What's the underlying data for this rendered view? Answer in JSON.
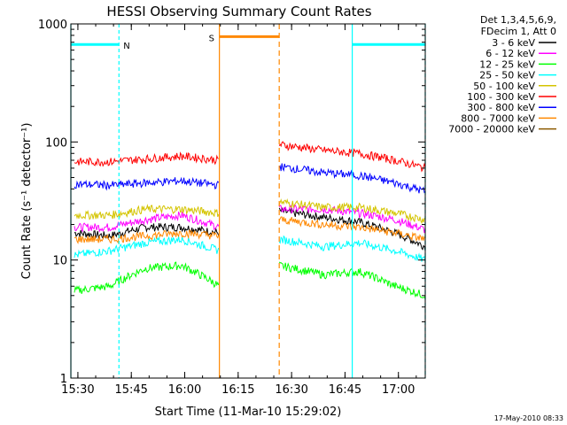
{
  "chart_data": {
    "type": "line",
    "title": "HESSI Observing Summary Count Rates",
    "xlabel": "Start Time (11-Mar-10 15:29:02)",
    "ylabel": "Count Rate (s⁻¹ detector⁻¹)",
    "ylog": true,
    "ylim": [
      1,
      1000
    ],
    "xlim": [
      "15:29:02",
      "17:08:00"
    ],
    "x_unit": "minutes after 15:29:02",
    "xticks": [
      {
        "label": "15:30",
        "minute": 0.97
      },
      {
        "label": "15:45",
        "minute": 15.97
      },
      {
        "label": "16:00",
        "minute": 30.97
      },
      {
        "label": "16:15",
        "minute": 45.97
      },
      {
        "label": "16:30",
        "minute": 60.97
      },
      {
        "label": "16:45",
        "minute": 75.97
      },
      {
        "label": "17:00",
        "minute": 90.97
      }
    ],
    "yticks": [
      {
        "label": "1",
        "value": 1
      },
      {
        "label": "10",
        "value": 10
      },
      {
        "label": "100",
        "value": 100
      },
      {
        "label": "1000",
        "value": 1000
      }
    ],
    "legend_header": [
      "Det 1,3,4,5,6,9,",
      "FDecim 1, Att 0"
    ],
    "legend_position": "outside-right",
    "timestamp": "17-May-2010 08:33",
    "segments": [
      [
        0,
        40.7
      ],
      [
        57.5,
        98.5
      ]
    ],
    "series": [
      {
        "name": "3 - 6 keV",
        "color": "#000000",
        "x": [
          0,
          10,
          20,
          30,
          40.7,
          57.5,
          70,
          80,
          90,
          98.5
        ],
        "values": [
          17,
          16,
          19,
          19,
          17,
          26,
          23,
          21,
          17,
          13
        ]
      },
      {
        "name": "6 - 12 keV",
        "color": "#ff00ff",
        "x": [
          0,
          10,
          20,
          30,
          40.7,
          57.5,
          70,
          80,
          90,
          98.5
        ],
        "values": [
          19,
          19,
          22,
          24,
          19,
          27,
          27,
          25,
          22,
          18
        ]
      },
      {
        "name": "12 - 25 keV",
        "color": "#00ff00",
        "x": [
          0,
          10,
          20,
          30,
          40.7,
          57.5,
          70,
          80,
          90,
          98.5
        ],
        "values": [
          5.5,
          6,
          8.5,
          9,
          6,
          9,
          7.5,
          8,
          6,
          5
        ]
      },
      {
        "name": "25 - 50 keV",
        "color": "#00ffff",
        "x": [
          0,
          10,
          20,
          30,
          40.7,
          57.5,
          70,
          80,
          90,
          98.5
        ],
        "values": [
          11,
          12,
          14,
          15,
          12,
          15,
          13,
          14,
          12,
          10
        ]
      },
      {
        "name": "50 - 100 keV",
        "color": "#d4c400",
        "x": [
          0,
          10,
          20,
          30,
          40.7,
          57.5,
          70,
          80,
          90,
          98.5
        ],
        "values": [
          24,
          24,
          27,
          27,
          25,
          31,
          28,
          28,
          25,
          22
        ]
      },
      {
        "name": "100 - 300 keV",
        "color": "#ff0000",
        "x": [
          0,
          10,
          20,
          30,
          40.7,
          57.5,
          70,
          80,
          90,
          98.5
        ],
        "values": [
          68,
          68,
          72,
          76,
          70,
          95,
          85,
          80,
          70,
          60
        ]
      },
      {
        "name": "300 - 800 keV",
        "color": "#0000ff",
        "x": [
          0,
          10,
          20,
          30,
          40.7,
          57.5,
          70,
          80,
          90,
          98.5
        ],
        "values": [
          44,
          43,
          45,
          47,
          43,
          62,
          55,
          52,
          45,
          38
        ]
      },
      {
        "name": "800 - 7000 keV",
        "color": "#ff8800",
        "x": [
          0,
          10,
          20,
          30,
          40.7,
          57.5,
          70,
          80,
          90,
          98.5
        ],
        "values": [
          15,
          15,
          16,
          17,
          16,
          22,
          20,
          19,
          17,
          15
        ]
      },
      {
        "name": "7000 - 20000 keV",
        "color": "#8b5a00",
        "x": [],
        "values": []
      }
    ],
    "flags": [
      {
        "label": "N",
        "color": "#00ffff",
        "ranges": [
          [
            -1,
            12.5
          ],
          [
            78,
            98.5
          ]
        ],
        "level": 670
      },
      {
        "label": "S",
        "color": "#ff8800",
        "ranges": [
          [
            40.7,
            57.5
          ]
        ],
        "level": 780
      }
    ]
  }
}
